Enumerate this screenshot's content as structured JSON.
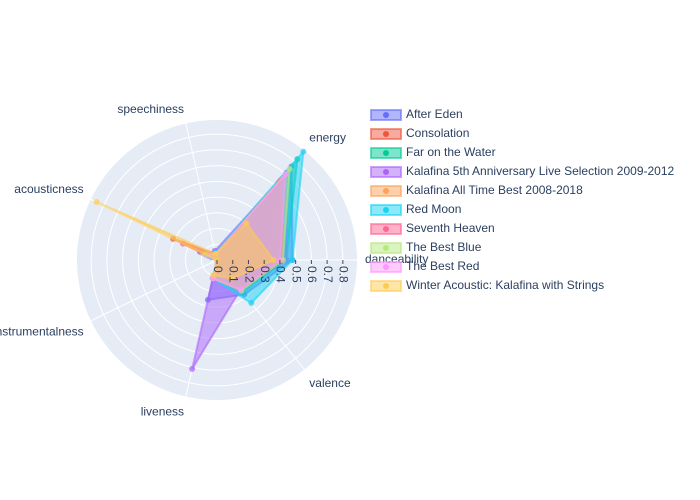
{
  "chart_data": {
    "type": "radar",
    "categories": [
      "danceability",
      "energy",
      "speechiness",
      "acousticness",
      "instrumentalness",
      "liveness",
      "valence"
    ],
    "rlim": [
      0,
      0.89
    ],
    "rticks": [
      0,
      0.1,
      0.2,
      0.3,
      0.4,
      0.5,
      0.6,
      0.7,
      0.8
    ],
    "grid": true,
    "legend_position": "right",
    "series": [
      {
        "name": "After Eden",
        "color": "#636efa",
        "values": [
          0.48,
          0.76,
          0.04,
          0.12,
          0.0,
          0.26,
          0.28
        ]
      },
      {
        "name": "Consolation",
        "color": "#EF553B",
        "values": [
          0.4,
          0.63,
          0.04,
          0.31,
          0.0,
          0.12,
          0.25
        ]
      },
      {
        "name": "Far on the Water",
        "color": "#00cc96",
        "values": [
          0.44,
          0.82,
          0.04,
          0.06,
          0.0,
          0.12,
          0.26
        ]
      },
      {
        "name": "Kalafina 5th Anniversary Live Selection 2009-2012",
        "color": "#ab63fa",
        "values": [
          0.44,
          0.71,
          0.06,
          0.08,
          0.0,
          0.71,
          0.24
        ]
      },
      {
        "name": "Kalafina All Time Best 2008-2018",
        "color": "#FFA15A",
        "values": [
          0.34,
          0.28,
          0.04,
          0.1,
          0.0,
          0.1,
          0.15
        ]
      },
      {
        "name": "Red Moon",
        "color": "#19d3f3",
        "values": [
          0.48,
          0.88,
          0.05,
          0.04,
          0.0,
          0.12,
          0.35
        ]
      },
      {
        "name": "Seventh Heaven",
        "color": "#FF6692",
        "values": [
          0.42,
          0.65,
          0.04,
          0.24,
          0.0,
          0.12,
          0.24
        ]
      },
      {
        "name": "The Best Blue",
        "color": "#B6E880",
        "values": [
          0.42,
          0.74,
          0.04,
          0.08,
          0.0,
          0.12,
          0.25
        ]
      },
      {
        "name": "The Best Red",
        "color": "#FF97FF",
        "values": [
          0.4,
          0.7,
          0.04,
          0.06,
          0.0,
          0.12,
          0.24
        ]
      },
      {
        "name": "Winter Acoustic: Kalafina with Strings",
        "color": "#FECB52",
        "values": [
          0.36,
          0.3,
          0.04,
          0.85,
          0.0,
          0.1,
          0.15
        ]
      }
    ]
  }
}
